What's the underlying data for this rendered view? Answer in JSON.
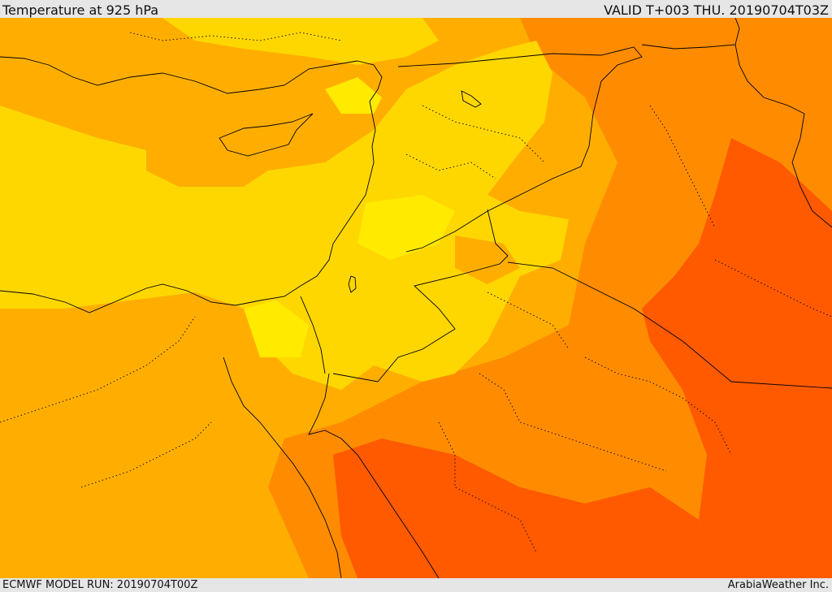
{
  "header": {
    "title": "Temperature at 925 hPa",
    "valid": "VALID T+003 THU. 20190704T03Z"
  },
  "footer": {
    "model_run": "ECMWF MODEL RUN: 20190704T00Z",
    "credit": "ArabiaWeather Inc."
  },
  "palette": {
    "band_1": "#ffd700",
    "band_2": "#ffea00",
    "band_3": "#ffae00",
    "band_4": "#ff8c00",
    "band_5": "#ff5a00"
  }
}
